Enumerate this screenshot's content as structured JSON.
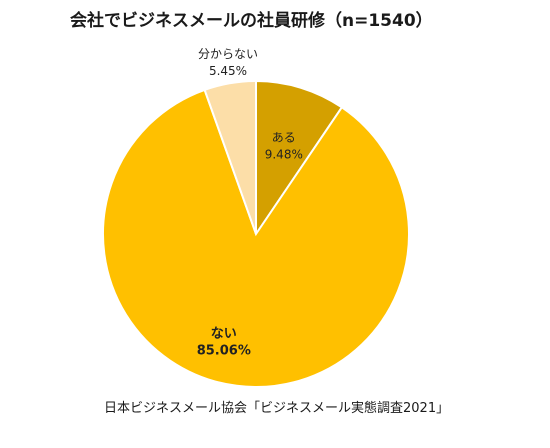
{
  "chart_data": {
    "type": "pie",
    "title": "会社でビジネスメールの社員研修（n=1540）",
    "source": "日本ビジネスメール協会「ビジネスメール実態調査2021」",
    "slices": [
      {
        "label": "ある",
        "value": 9.48,
        "value_text": "9.48%",
        "color": "#D4A000"
      },
      {
        "label": "ない",
        "value": 85.06,
        "value_text": "85.06%",
        "color": "#FFC000"
      },
      {
        "label": "分からない",
        "value": 5.45,
        "value_text": "5.45%",
        "color": "#FCDEA8"
      }
    ],
    "start_angle_deg": 0,
    "direction": "clockwise"
  }
}
